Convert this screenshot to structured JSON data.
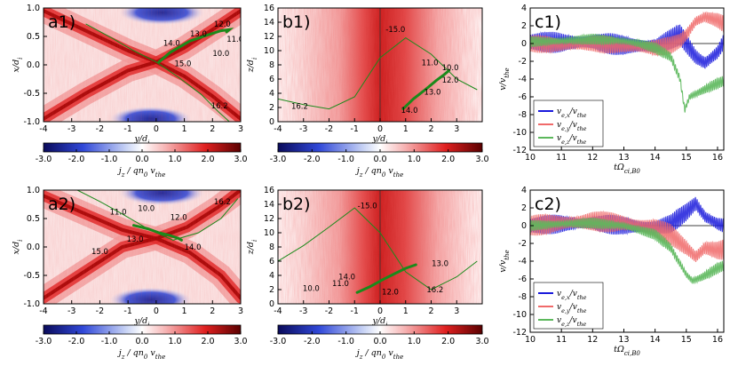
{
  "colors": {
    "red": "#cc1010",
    "blue": "#10107a",
    "white": "#ffffff",
    "green": "#1b8a1b",
    "line_x": "#1a1adc",
    "line_y": "#f06a6a",
    "line_z": "#5cb85c"
  },
  "chart_data": [
    {
      "id": "a1",
      "type": "heatmap",
      "label": "a1)",
      "xlabel": "y/d_i",
      "ylabel": "x/d_i",
      "xlim": [
        -4,
        3
      ],
      "ylim": [
        -1.0,
        1.0
      ],
      "xticks": [
        "-4",
        "-3",
        "-2",
        "-1",
        "0",
        "1",
        "2",
        "3"
      ],
      "yticks": [
        "-1.0",
        "-0.5",
        "0.0",
        "0.5",
        "1.0"
      ],
      "colorbar": {
        "label": "j_z / qn_0 v_the",
        "range": [
          -3,
          3
        ],
        "ticks": [
          "-3.0",
          "-2.0",
          "-1.0",
          "0.0",
          "1.0",
          "2.0",
          "3.0"
        ]
      },
      "annotations": [
        {
          "text": "12.0",
          "x": 2.35,
          "y": 0.72
        },
        {
          "text": "13.0",
          "x": 1.5,
          "y": 0.55
        },
        {
          "text": "14.0",
          "x": 0.55,
          "y": 0.38
        },
        {
          "text": "11.0",
          "x": 2.8,
          "y": 0.45
        },
        {
          "text": "10.0",
          "x": 2.3,
          "y": 0.2
        },
        {
          "text": "15.0",
          "x": 0.95,
          "y": 0.02
        },
        {
          "text": "16.2",
          "x": 2.25,
          "y": -0.72
        }
      ],
      "trajectory": {
        "x": [
          0.1,
          0.5,
          1.2,
          1.8,
          2.3,
          2.6,
          2.5
        ],
        "y": [
          0.05,
          0.22,
          0.42,
          0.52,
          0.6,
          0.62,
          0.58
        ]
      },
      "separatrix": {
        "x": [
          -2.5,
          -1.6,
          -0.8,
          0,
          0.8,
          1.6,
          2.2,
          2.6
        ],
        "y": [
          0.72,
          0.48,
          0.25,
          0.05,
          -0.22,
          -0.52,
          -0.82,
          -1.0
        ]
      }
    },
    {
      "id": "a2",
      "type": "heatmap",
      "label": "a2)",
      "xlabel": "y/d_i",
      "ylabel": "x/d_i",
      "xlim": [
        -4,
        3
      ],
      "ylim": [
        -1.0,
        1.0
      ],
      "xticks": [
        "-4",
        "-3",
        "-2",
        "-1",
        "0",
        "1",
        "2",
        "3"
      ],
      "yticks": [
        "-1.0",
        "-0.5",
        "0.0",
        "0.5",
        "1.0"
      ],
      "colorbar": {
        "label": "j_z / qn_0 v_the",
        "range": [
          -3,
          3
        ],
        "ticks": [
          "-3.0",
          "-2.0",
          "-1.0",
          "0.0",
          "1.0",
          "2.0",
          "3.0"
        ]
      },
      "annotations": [
        {
          "text": "10.0",
          "x": -0.35,
          "y": 0.68
        },
        {
          "text": "11.0",
          "x": -1.35,
          "y": 0.62
        },
        {
          "text": "12.0",
          "x": 0.8,
          "y": 0.52
        },
        {
          "text": "13.0",
          "x": -0.75,
          "y": 0.14
        },
        {
          "text": "14.0",
          "x": 1.3,
          "y": 0.0
        },
        {
          "text": "15.0",
          "x": -2.0,
          "y": -0.08
        },
        {
          "text": "16.2",
          "x": 2.35,
          "y": 0.8
        }
      ],
      "trajectory": {
        "x": [
          -0.8,
          -0.3,
          0.1,
          0.5,
          0.8,
          0.9
        ],
        "y": [
          0.38,
          0.32,
          0.25,
          0.2,
          0.15,
          0.12
        ]
      },
      "separatrix": {
        "x": [
          -2.8,
          -2.0,
          -1.2,
          -0.3,
          0.6,
          1.5,
          2.3,
          2.9
        ],
        "y": [
          1.0,
          0.8,
          0.58,
          0.32,
          0.12,
          0.25,
          0.5,
          0.85
        ]
      }
    },
    {
      "id": "b1",
      "type": "heatmap",
      "label": "b1)",
      "xlabel": "y/d_i",
      "ylabel": "z/d_i",
      "xlim": [
        -4,
        4
      ],
      "ylim": [
        0,
        16
      ],
      "xticks": [
        "-4",
        "-3",
        "-2",
        "-1",
        "0",
        "1",
        "2",
        "3"
      ],
      "yticks": [
        "0",
        "2",
        "4",
        "6",
        "8",
        "10",
        "12",
        "14",
        "16"
      ],
      "colorbar": {
        "label": "j_z / qn_0 v_the",
        "range": [
          -3,
          3
        ],
        "ticks": [
          "-3.0",
          "-2.0",
          "-1.0",
          "0.0",
          "1.0",
          "2.0",
          "3.0"
        ]
      },
      "annotations": [
        {
          "text": "-15.0",
          "x": 0.6,
          "y": 13.0
        },
        {
          "text": "11.0",
          "x": 1.95,
          "y": 8.3
        },
        {
          "text": "10.0",
          "x": 2.75,
          "y": 7.6
        },
        {
          "text": "12.0",
          "x": 2.75,
          "y": 5.9
        },
        {
          "text": "13.0",
          "x": 2.05,
          "y": 4.2
        },
        {
          "text": "14.0",
          "x": 1.15,
          "y": 1.6
        },
        {
          "text": "16.2",
          "x": -3.15,
          "y": 2.2
        }
      ],
      "trajectory": {
        "x": [
          0.9,
          1.3,
          1.8,
          2.2,
          2.5,
          2.7
        ],
        "y": [
          1.8,
          3.2,
          4.6,
          5.8,
          6.6,
          7.2
        ]
      },
      "separatrix": {
        "x": [
          -4.0,
          -3.0,
          -2.0,
          -1.0,
          0,
          1.0,
          2.0,
          3.0,
          3.8
        ],
        "y": [
          3.2,
          2.4,
          1.8,
          3.5,
          9.0,
          11.8,
          9.5,
          6.0,
          4.5
        ]
      }
    },
    {
      "id": "b2",
      "type": "heatmap",
      "label": "b2)",
      "xlabel": "y/d_i",
      "ylabel": "z/d_i",
      "xlim": [
        -4,
        4
      ],
      "ylim": [
        0,
        16
      ],
      "xticks": [
        "-4",
        "-3",
        "-2",
        "-1",
        "0",
        "1",
        "2",
        "3"
      ],
      "yticks": [
        "0",
        "2",
        "4",
        "6",
        "8",
        "10",
        "12",
        "14",
        "16"
      ],
      "colorbar": {
        "label": "j_z / qn_0 v_the",
        "range": [
          -3,
          3
        ],
        "ticks": [
          "-3.0",
          "-2.0",
          "-1.0",
          "0.0",
          "1.0",
          "2.0",
          "3.0"
        ]
      },
      "annotations": [
        {
          "text": "-15.0",
          "x": -0.5,
          "y": 13.8
        },
        {
          "text": "13.0",
          "x": 2.35,
          "y": 5.7
        },
        {
          "text": "14.0",
          "x": -1.3,
          "y": 3.8
        },
        {
          "text": "11.0",
          "x": -1.55,
          "y": 2.9
        },
        {
          "text": "10.0",
          "x": -2.7,
          "y": 2.2
        },
        {
          "text": "12.0",
          "x": 0.4,
          "y": 1.7
        },
        {
          "text": "16.2",
          "x": 2.15,
          "y": 2.0
        }
      ],
      "trajectory": {
        "x": [
          -0.9,
          -0.4,
          0.1,
          0.6,
          1.0,
          1.4
        ],
        "y": [
          1.6,
          2.4,
          3.4,
          4.3,
          5.0,
          5.5
        ]
      },
      "separatrix": {
        "x": [
          -4.0,
          -3.0,
          -2.0,
          -1.0,
          0,
          1.0,
          2.0,
          3.0,
          3.8
        ],
        "y": [
          6.0,
          8.2,
          10.8,
          13.5,
          10.0,
          4.5,
          2.0,
          3.8,
          6.0
        ]
      }
    },
    {
      "id": "c1",
      "type": "line",
      "label": "c1)",
      "xlabel": "tΩ_ci,B0",
      "ylabel": "v/v_the",
      "xlim": [
        10,
        16.2
      ],
      "ylim": [
        -12,
        4
      ],
      "xticks": [
        "10",
        "11",
        "12",
        "13",
        "14",
        "15",
        "16"
      ],
      "yticks": [
        "4",
        "2",
        "0",
        "-2",
        "-4",
        "-6",
        "-8",
        "-10",
        "-12"
      ],
      "legend": {
        "position": "lower-left",
        "entries": [
          "v_e,x/v_the",
          "v_e,y/v_the",
          "v_e,z/v_the"
        ]
      },
      "series": [
        {
          "name": "v_e,x/v_the",
          "x": [
            10,
            11,
            12,
            13,
            14,
            14.5,
            14.8,
            15.0,
            15.3,
            15.6,
            16.0,
            16.2
          ],
          "y": [
            0.2,
            0.1,
            0.2,
            -0.2,
            -0.3,
            0.5,
            1.0,
            0.0,
            -1.5,
            -2.2,
            -1.0,
            0.2
          ],
          "osc_amp": 1.2
        },
        {
          "name": "v_e,y/v_the",
          "x": [
            10,
            11,
            12,
            13,
            14,
            14.5,
            14.8,
            15.0,
            15.3,
            15.6,
            16.0,
            16.2
          ],
          "y": [
            0.0,
            -0.2,
            0.0,
            -0.3,
            -0.5,
            -0.2,
            0.3,
            1.0,
            2.5,
            3.0,
            2.6,
            2.2
          ],
          "osc_amp": 1.0
        },
        {
          "name": "v_e,z/v_the",
          "x": [
            10,
            11,
            12,
            13,
            13.5,
            14.0,
            14.5,
            14.8,
            14.95,
            15.1,
            15.4,
            15.8,
            16.2
          ],
          "y": [
            0.2,
            0.3,
            0.5,
            0.3,
            0.0,
            -0.5,
            -1.5,
            -4.0,
            -7.5,
            -6.0,
            -5.5,
            -4.8,
            -4.2
          ],
          "osc_amp": 0.6
        }
      ]
    },
    {
      "id": "c2",
      "type": "line",
      "label": "c2)",
      "xlabel": "tΩ_ci,B0",
      "ylabel": "v/v_the",
      "xlim": [
        10,
        16.2
      ],
      "ylim": [
        -12,
        4
      ],
      "xticks": [
        "10",
        "11",
        "12",
        "13",
        "14",
        "15",
        "16"
      ],
      "yticks": [
        "4",
        "2",
        "0",
        "-2",
        "-4",
        "-6",
        "-8",
        "-10",
        "-12"
      ],
      "legend": {
        "position": "lower-left",
        "entries": [
          "v_e,x/v_the",
          "v_e,y/v_the",
          "v_e,z/v_the"
        ]
      },
      "series": [
        {
          "name": "v_e,x/v_the",
          "x": [
            10,
            11,
            12,
            13,
            14,
            14.5,
            15.0,
            15.3,
            15.6,
            16.0,
            16.2
          ],
          "y": [
            0.0,
            0.2,
            0.3,
            0.0,
            -0.2,
            0.2,
            1.5,
            2.5,
            1.0,
            0.2,
            0.0
          ],
          "osc_amp": 1.1
        },
        {
          "name": "v_e,y/v_the",
          "x": [
            10,
            11,
            12,
            13,
            14,
            14.5,
            15.0,
            15.3,
            15.6,
            16.0,
            16.2
          ],
          "y": [
            0.0,
            0.3,
            0.5,
            0.3,
            -0.3,
            -1.0,
            -2.5,
            -3.5,
            -2.5,
            -2.8,
            -2.7
          ],
          "osc_amp": 1.2
        },
        {
          "name": "v_e,z/v_the",
          "x": [
            10,
            11,
            12,
            13,
            14,
            14.5,
            15.0,
            15.2,
            15.5,
            16.0,
            16.2
          ],
          "y": [
            0.0,
            0.2,
            0.3,
            0.0,
            -1.0,
            -2.5,
            -5.5,
            -6.2,
            -5.8,
            -4.8,
            -4.5
          ],
          "osc_amp": 0.6
        }
      ]
    }
  ]
}
